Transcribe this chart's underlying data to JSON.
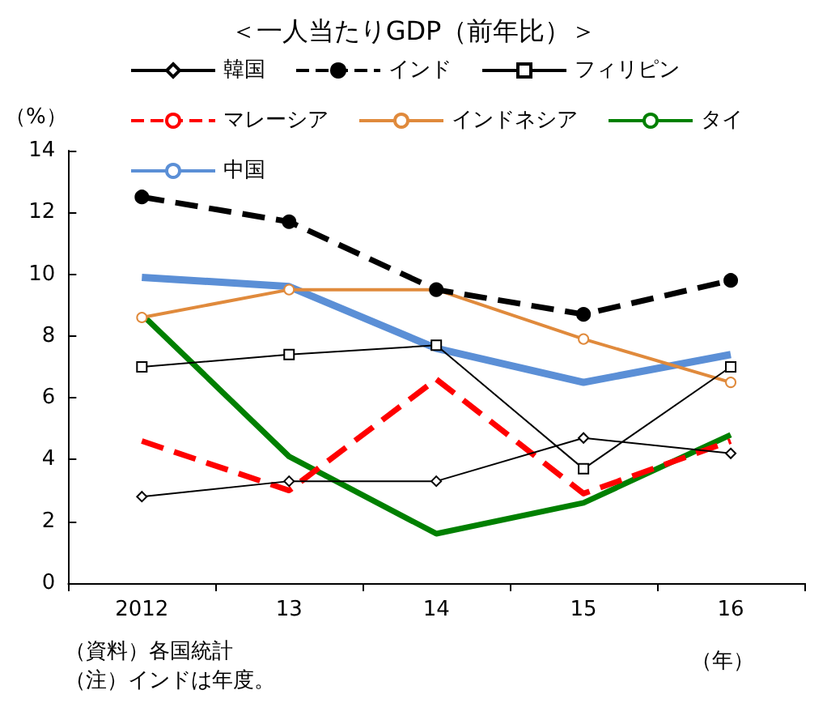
{
  "chart_data": {
    "type": "line",
    "title": "＜一人当たりGDP（前年比）＞",
    "xlabel": "（年）",
    "ylabel": "（%）",
    "categories": [
      "2012",
      "13",
      "14",
      "15",
      "16"
    ],
    "series": [
      {
        "name": "韓国",
        "color": "#000000",
        "marker": "diamond",
        "line_style": "solid",
        "values": [
          2.8,
          3.3,
          3.3,
          4.7,
          4.2
        ]
      },
      {
        "name": "インド",
        "color": "#000000",
        "marker": "circle",
        "line_style": "dashed",
        "values": [
          12.5,
          11.7,
          9.5,
          8.7,
          9.8
        ]
      },
      {
        "name": "フィリピン",
        "color": "#000000",
        "marker": "square",
        "line_style": "solid",
        "values": [
          7.0,
          7.4,
          7.7,
          3.7,
          7.0
        ]
      },
      {
        "name": "マレーシア",
        "color": "#ff0000",
        "marker": "none",
        "line_style": "dashed",
        "values": [
          4.6,
          3.0,
          6.6,
          2.9,
          4.6
        ]
      },
      {
        "name": "インドネシア",
        "color": "#e08a3c",
        "marker": "circle",
        "line_style": "solid",
        "values": [
          8.6,
          9.5,
          9.5,
          7.9,
          6.5
        ]
      },
      {
        "name": "タイ",
        "color": "#008000",
        "marker": "none",
        "line_style": "solid",
        "values": [
          8.7,
          4.1,
          1.6,
          2.6,
          4.8
        ]
      },
      {
        "name": "中国",
        "color": "#5b8fd6",
        "marker": "none",
        "line_style": "solid",
        "values": [
          9.9,
          9.6,
          7.6,
          6.5,
          7.4
        ]
      }
    ],
    "ylim": [
      0,
      14
    ],
    "yticks": [
      0,
      2,
      4,
      6,
      8,
      10,
      12,
      14
    ],
    "grid": false,
    "legend": "top",
    "annotations": [
      "（資料）各国統計",
      "（注）インドは年度。"
    ]
  }
}
